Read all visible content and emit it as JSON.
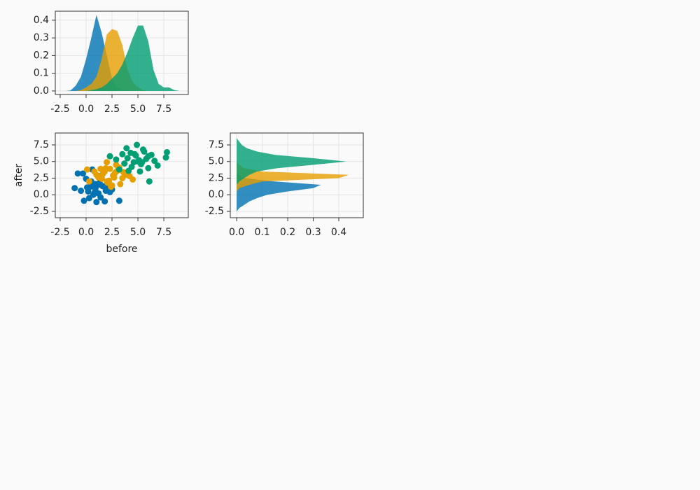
{
  "chart_data": [
    {
      "type": "density",
      "orientation": "vertical",
      "xlim": [
        -2.97,
        9.86
      ],
      "ylim": [
        -0.02,
        0.451
      ],
      "xticks": [
        -2.5,
        {
          "value": 0,
          "label": "0.0"
        },
        2.5,
        {
          "value": 5,
          "label": "5.0"
        },
        7.5
      ],
      "yticks": [
        {
          "value": 0,
          "label": "0.0"
        },
        0.1,
        0.2,
        0.3,
        0.4
      ],
      "grid": true,
      "series": [
        {
          "color": "#0072b2",
          "x": [
            -2,
            -1.5,
            -1,
            -0.5,
            0,
            0.5,
            1,
            1.5,
            2,
            2.5,
            3,
            3.5,
            4
          ],
          "values": [
            0,
            0.003,
            0.03,
            0.08,
            0.18,
            0.3,
            0.43,
            0.33,
            0.2,
            0.07,
            0.02,
            0.005,
            0
          ]
        },
        {
          "color": "#e69f00",
          "x": [
            -1,
            -0.5,
            0,
            0.5,
            1,
            1.5,
            2,
            2.5,
            3,
            3.5,
            4,
            4.5,
            5,
            5.5,
            6
          ],
          "values": [
            0,
            0.005,
            0.02,
            0.04,
            0.08,
            0.18,
            0.32,
            0.35,
            0.34,
            0.26,
            0.12,
            0.05,
            0.02,
            0.005,
            0
          ]
        },
        {
          "color": "#009e73",
          "x": [
            0,
            0.5,
            1,
            1.5,
            2,
            2.5,
            3,
            3.5,
            4,
            4.5,
            5,
            5.5,
            6,
            6.5,
            7,
            7.5,
            8,
            8.5,
            9
          ],
          "values": [
            0,
            0.005,
            0.01,
            0.02,
            0.04,
            0.07,
            0.1,
            0.15,
            0.22,
            0.3,
            0.37,
            0.37,
            0.28,
            0.12,
            0.04,
            0.02,
            0.02,
            0.005,
            0
          ]
        }
      ]
    },
    {
      "type": "scatter",
      "xlabel": "before",
      "ylabel": "after",
      "xlim": [
        -2.97,
        9.86
      ],
      "ylim": [
        -3.45,
        9.29
      ],
      "xticks": [
        -2.5,
        {
          "value": 0,
          "label": "0.0"
        },
        2.5,
        {
          "value": 5,
          "label": "5.0"
        },
        7.5
      ],
      "yticks": [
        -2.5,
        {
          "value": 0,
          "label": "0.0"
        },
        2.5,
        {
          "value": 5,
          "label": "5.0"
        },
        7.5
      ],
      "grid": true,
      "series": [
        {
          "color": "#0072b2",
          "x": [
            -0.3,
            0.5,
            1.2,
            0.8,
            1.5,
            2.0,
            0.2,
            -0.5,
            1.0,
            1.8,
            0.6,
            0.9,
            1.3,
            -0.2,
            2.3,
            0.4,
            1.1,
            0.7,
            1.6,
            -1.1,
            0.0,
            2.5,
            1.4,
            0.3,
            0.9,
            1.9,
            3.2,
            -0.8,
            0.1,
            1.2
          ],
          "values": [
            3.2,
            2.0,
            1.5,
            0.3,
            2.5,
            1.0,
            0.5,
            0.6,
            -1.1,
            -1.0,
            3.8,
            0.9,
            1.8,
            -0.9,
            0.4,
            1.2,
            2.9,
            0.0,
            1.3,
            1.0,
            2.4,
            0.8,
            -0.4,
            -0.5,
            1.6,
            0.6,
            -0.9,
            3.2,
            1.1,
            0.2
          ]
        },
        {
          "color": "#e69f00",
          "x": [
            0.1,
            0.3,
            1.0,
            1.5,
            1.8,
            2.0,
            2.2,
            2.4,
            2.6,
            2.8,
            3.0,
            3.2,
            3.5,
            3.8,
            4.0,
            4.5,
            2.1,
            1.9,
            2.7,
            3.3,
            2.3,
            1.6,
            4.2,
            2.9,
            0.8,
            2.5,
            3.6,
            1.2,
            1.4,
            2.0
          ],
          "values": [
            3.8,
            2.0,
            3.0,
            2.4,
            3.5,
            4.9,
            2.1,
            1.2,
            2.9,
            3.3,
            3.6,
            4.1,
            2.5,
            3.0,
            3.2,
            2.3,
            1.8,
            4.0,
            2.6,
            1.6,
            3.9,
            3.1,
            2.8,
            4.5,
            3.5,
            1.4,
            3.4,
            2.6,
            3.9,
            2.0
          ]
        },
        {
          "color": "#009e73",
          "x": [
            2.3,
            3.2,
            3.7,
            4.0,
            4.3,
            4.6,
            4.9,
            5.1,
            5.3,
            5.5,
            5.8,
            6.0,
            6.3,
            6.6,
            6.9,
            7.8,
            7.7,
            4.8,
            5.2,
            3.5,
            4.1,
            5.6,
            6.1,
            4.4,
            5.0,
            3.9,
            6.0,
            5.4,
            4.7,
            2.9
          ],
          "values": [
            5.8,
            3.8,
            4.7,
            5.5,
            6.3,
            4.9,
            7.5,
            5.2,
            4.6,
            6.8,
            5.4,
            4.0,
            6.0,
            5.1,
            4.4,
            6.4,
            5.6,
            5.9,
            3.5,
            6.1,
            3.6,
            6.5,
            2.0,
            4.2,
            5.0,
            7.0,
            5.8,
            4.9,
            6.1,
            5.3
          ]
        }
      ]
    },
    {
      "type": "density",
      "orientation": "horizontal",
      "xlim": [
        -0.025,
        0.496
      ],
      "ylim": [
        -3.45,
        9.29
      ],
      "xticks": [
        {
          "value": 0,
          "label": "0.0"
        },
        0.1,
        0.2,
        0.3,
        0.4
      ],
      "yticks": [
        -2.5,
        {
          "value": 0,
          "label": "0.0"
        },
        2.5,
        {
          "value": 5,
          "label": "5.0"
        },
        7.5
      ],
      "grid": true,
      "series": [
        {
          "color": "#0072b2",
          "y": [
            -2.5,
            -2,
            -1.5,
            -1,
            -0.5,
            0,
            0.5,
            1,
            1.5,
            2,
            2.5,
            3,
            3.5
          ],
          "values": [
            0,
            0.01,
            0.03,
            0.05,
            0.08,
            0.12,
            0.2,
            0.3,
            0.33,
            0.15,
            0.03,
            0.005,
            0
          ]
        },
        {
          "color": "#e69f00",
          "y": [
            0.5,
            1,
            1.5,
            2,
            2.5,
            3,
            3.5,
            4,
            4.5,
            5
          ],
          "values": [
            0,
            0.01,
            0.05,
            0.1,
            0.4,
            0.44,
            0.1,
            0.03,
            0.01,
            0
          ]
        },
        {
          "color": "#009e73",
          "y": [
            1.5,
            2,
            2.5,
            3,
            3.5,
            4,
            4.5,
            5,
            5.5,
            6,
            6.5,
            7,
            7.5,
            8,
            8.5
          ],
          "values": [
            0,
            0.01,
            0.03,
            0.05,
            0.08,
            0.16,
            0.3,
            0.43,
            0.3,
            0.15,
            0.08,
            0.04,
            0.02,
            0.01,
            0
          ]
        }
      ]
    }
  ]
}
